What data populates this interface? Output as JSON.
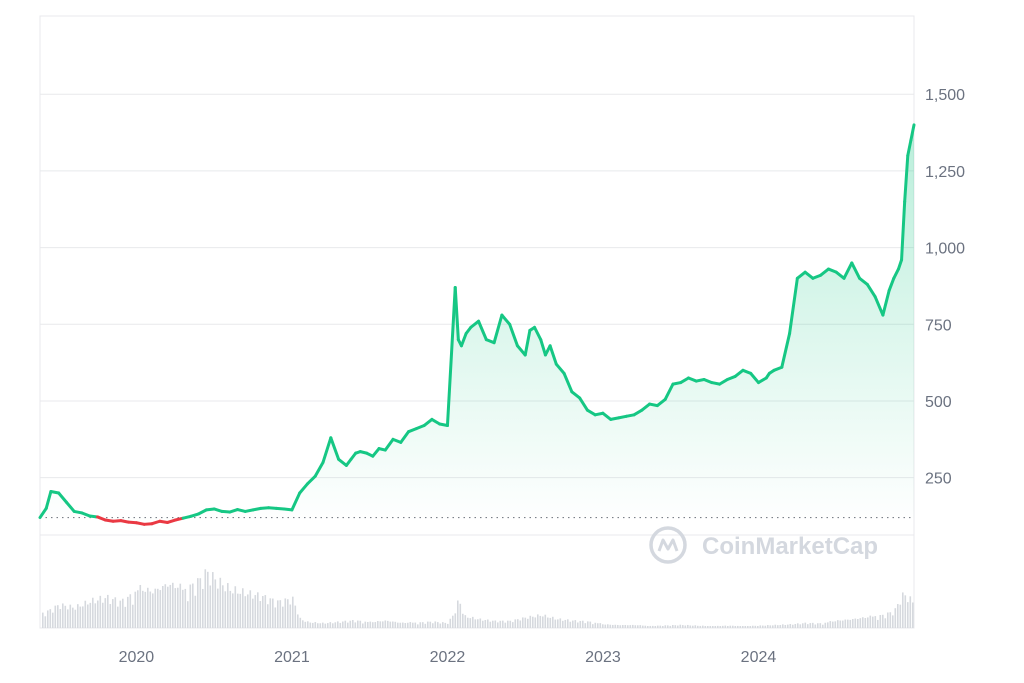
{
  "chart_data": {
    "type": "area",
    "title": "",
    "xlabel": "",
    "ylabel": "",
    "x_ticks": [
      {
        "label": "2020",
        "t": 2020.0
      },
      {
        "label": "2021",
        "t": 2021.0
      },
      {
        "label": "2022",
        "t": 2022.0
      },
      {
        "label": "2023",
        "t": 2023.0
      },
      {
        "label": "2024",
        "t": 2024.0
      }
    ],
    "y_ticks": [
      {
        "label": "250",
        "v": 250
      },
      {
        "label": "500",
        "v": 500
      },
      {
        "label": "750",
        "v": 750
      },
      {
        "label": "1,000",
        "v": 1000
      },
      {
        "label": "1,250",
        "v": 1250
      },
      {
        "label": "1,500",
        "v": 1500
      }
    ],
    "xlim": [
      2019.38,
      2025.0
    ],
    "ylim": [
      -240,
      1755
    ],
    "baseline": 120,
    "grid": true,
    "colors": {
      "up": "#16c784",
      "down": "#ea3943",
      "grid": "#e8e9ec",
      "volume": "#d6d9de"
    },
    "series": [
      {
        "t": [
          2019.38,
          2019.42,
          2019.45,
          2019.5,
          2019.55,
          2019.6,
          2019.65,
          2019.7,
          2019.75,
          2019.8,
          2019.85,
          2019.9,
          2019.95,
          2020.0,
          2020.05,
          2020.1,
          2020.15,
          2020.2,
          2020.25,
          2020.3,
          2020.35,
          2020.4,
          2020.45,
          2020.5,
          2020.55,
          2020.6,
          2020.65,
          2020.7,
          2020.75,
          2020.8,
          2020.85,
          2020.9,
          2020.95,
          2021.0,
          2021.05,
          2021.1,
          2021.15,
          2021.2,
          2021.25,
          2021.3,
          2021.35,
          2021.38,
          2021.41,
          2021.44,
          2021.48,
          2021.52,
          2021.56,
          2021.6,
          2021.65,
          2021.7,
          2021.75,
          2021.8,
          2021.85,
          2021.9,
          2021.95,
          2022.0,
          2022.05,
          2022.07,
          2022.09,
          2022.12,
          2022.15,
          2022.2,
          2022.25,
          2022.3,
          2022.35,
          2022.4,
          2022.45,
          2022.5,
          2022.53,
          2022.56,
          2022.6,
          2022.63,
          2022.66,
          2022.7,
          2022.75,
          2022.8,
          2022.85,
          2022.9,
          2022.95,
          2023.0,
          2023.05,
          2023.1,
          2023.15,
          2023.2,
          2023.25,
          2023.3,
          2023.35,
          2023.4,
          2023.45,
          2023.5,
          2023.55,
          2023.6,
          2023.65,
          2023.7,
          2023.75,
          2023.8,
          2023.85,
          2023.9,
          2023.95,
          2024.0,
          2024.05,
          2024.07,
          2024.1,
          2024.15,
          2024.2,
          2024.25,
          2024.3,
          2024.35,
          2024.4,
          2024.45,
          2024.5,
          2024.55,
          2024.6,
          2024.65,
          2024.7,
          2024.75,
          2024.8,
          2024.84,
          2024.87,
          2024.9,
          2024.92,
          2024.94,
          2024.96,
          2024.98,
          2025.0
        ],
        "v": [
          120,
          150,
          205,
          200,
          170,
          140,
          135,
          125,
          122,
          112,
          108,
          110,
          105,
          103,
          98,
          100,
          108,
          104,
          112,
          118,
          124,
          132,
          145,
          148,
          140,
          138,
          146,
          140,
          145,
          150,
          152,
          150,
          148,
          145,
          200,
          230,
          255,
          300,
          380,
          310,
          290,
          310,
          330,
          335,
          330,
          320,
          345,
          340,
          375,
          365,
          400,
          410,
          420,
          440,
          425,
          420,
          870,
          700,
          680,
          720,
          740,
          760,
          700,
          690,
          780,
          750,
          680,
          650,
          730,
          740,
          700,
          650,
          680,
          620,
          590,
          530,
          510,
          470,
          455,
          460,
          440,
          445,
          450,
          455,
          470,
          490,
          485,
          505,
          555,
          560,
          575,
          565,
          570,
          560,
          555,
          570,
          580,
          600,
          590,
          560,
          575,
          590,
          600,
          610,
          720,
          900,
          920,
          900,
          910,
          930,
          920,
          900,
          950,
          900,
          880,
          840,
          780,
          860,
          900,
          930,
          960,
          1150,
          1300,
          1350,
          1400,
          1450,
          1490
        ]
      }
    ],
    "volume": {
      "t": [
        2019.4,
        2019.5,
        2019.6,
        2019.7,
        2019.8,
        2019.9,
        2020.0,
        2020.1,
        2020.2,
        2020.3,
        2020.4,
        2020.45,
        2020.5,
        2020.6,
        2020.7,
        2020.8,
        2020.9,
        2021.0,
        2021.05,
        2021.1,
        2021.2,
        2021.3,
        2021.4,
        2021.5,
        2021.6,
        2021.7,
        2021.8,
        2021.9,
        2022.0,
        2022.05,
        2022.07,
        2022.1,
        2022.2,
        2022.3,
        2022.4,
        2022.5,
        2022.6,
        2022.7,
        2022.8,
        2022.9,
        2023.0,
        2023.1,
        2023.2,
        2023.3,
        2023.4,
        2023.5,
        2023.6,
        2023.7,
        2023.8,
        2023.9,
        2024.0,
        2024.1,
        2024.2,
        2024.3,
        2024.4,
        2024.5,
        2024.6,
        2024.7,
        2024.8,
        2024.85,
        2024.88,
        2024.9,
        2024.93,
        2024.96,
        2025.0
      ],
      "level": [
        0.25,
        0.4,
        0.35,
        0.45,
        0.5,
        0.42,
        0.55,
        0.5,
        0.6,
        0.55,
        0.75,
        0.9,
        0.8,
        0.65,
        0.6,
        0.55,
        0.45,
        0.5,
        0.15,
        0.1,
        0.08,
        0.1,
        0.12,
        0.08,
        0.1,
        0.07,
        0.08,
        0.1,
        0.08,
        0.3,
        0.5,
        0.2,
        0.15,
        0.12,
        0.12,
        0.18,
        0.22,
        0.15,
        0.12,
        0.1,
        0.05,
        0.04,
        0.04,
        0.03,
        0.04,
        0.05,
        0.04,
        0.03,
        0.04,
        0.03,
        0.04,
        0.05,
        0.06,
        0.08,
        0.07,
        0.1,
        0.12,
        0.15,
        0.2,
        0.25,
        0.3,
        0.45,
        0.55,
        0.5,
        0.4
      ]
    },
    "watermark": "CoinMarketCap"
  }
}
